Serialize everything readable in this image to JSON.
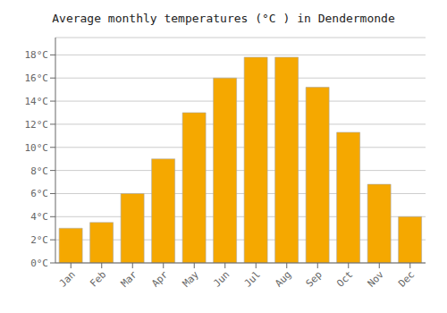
{
  "chart_data": {
    "type": "bar",
    "title": "Average monthly temperatures (°C ) in Dendermonde",
    "categories": [
      "Jan",
      "Feb",
      "Mar",
      "Apr",
      "May",
      "Jun",
      "Jul",
      "Aug",
      "Sep",
      "Oct",
      "Nov",
      "Dec"
    ],
    "values": [
      3.0,
      3.5,
      6.0,
      9.0,
      13.0,
      16.0,
      17.8,
      17.8,
      15.2,
      11.3,
      6.8,
      4.0
    ],
    "color": "#F5A800",
    "ylim": [
      0,
      19.5
    ],
    "yticks": [
      {
        "value": 0,
        "label": "0°C"
      },
      {
        "value": 2,
        "label": "2°C"
      },
      {
        "value": 4,
        "label": "4°C"
      },
      {
        "value": 6,
        "label": "6°C"
      },
      {
        "value": 8,
        "label": "8°C"
      },
      {
        "value": 10,
        "label": "10°C"
      },
      {
        "value": 12,
        "label": "12°C"
      },
      {
        "value": 14,
        "label": "14°C"
      },
      {
        "value": 16,
        "label": "16°C"
      },
      {
        "value": 18,
        "label": "18°C"
      }
    ],
    "grid": true
  }
}
